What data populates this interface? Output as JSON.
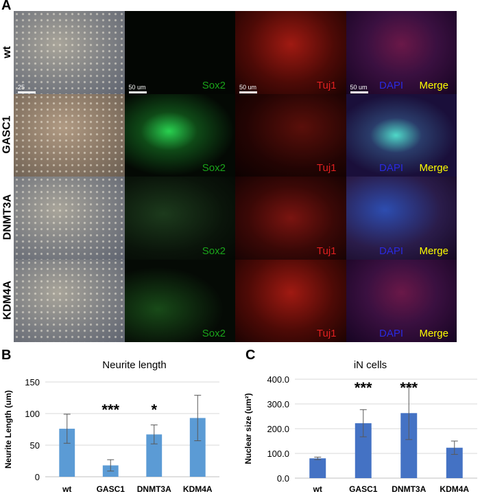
{
  "panel_letters": {
    "a": "A",
    "b": "B",
    "c": "C"
  },
  "micrographs": {
    "rows": [
      {
        "label": "wt",
        "sox2": "Sox2",
        "tuj1": "Tuj1",
        "dapi": "DAPI",
        "merge": "Merge"
      },
      {
        "label": "GASC1",
        "sox2": "Sox2",
        "tuj1": "Tuj1",
        "dapi": "DAPI",
        "merge": "Merge"
      },
      {
        "label": "DNMT3A",
        "sox2": "Sox2",
        "tuj1": "Tuj1",
        "dapi": "DAPI",
        "merge": "Merge"
      },
      {
        "label": "KDM4A",
        "sox2": "Sox2",
        "tuj1": "Tuj1",
        "dapi": "DAPI",
        "merge": "Merge"
      }
    ],
    "scale_bars": [
      "25",
      "50 um",
      "50 um",
      "50 um"
    ],
    "colors": {
      "sox2": "#1aa31a",
      "tuj1": "#e02020",
      "dapi": "#2a2ae0",
      "merge": "#ffff00"
    }
  },
  "chart_data": [
    {
      "type": "bar",
      "title": "Neurite length",
      "xlabel": "",
      "ylabel": "Neurite Length (um)",
      "categories": [
        "wt",
        "GASC1",
        "DNMT3A",
        "KDM4A"
      ],
      "values": [
        76,
        18,
        67,
        93
      ],
      "errors": [
        23,
        9,
        15,
        36
      ],
      "significance": [
        "",
        "***",
        "*",
        ""
      ],
      "ylim": [
        0,
        150
      ],
      "yticks": [
        "0",
        "50",
        "100",
        "150"
      ],
      "bar_color": "#5b9bd5",
      "grid": true
    },
    {
      "type": "bar",
      "title": "iN cells",
      "xlabel": "",
      "ylabel": "Nuclear size (um²)",
      "categories": [
        "wt",
        "GASC1",
        "DNMT3A",
        "KDM4A"
      ],
      "values": [
        80,
        222,
        263,
        123
      ],
      "errors": [
        5,
        55,
        107,
        27
      ],
      "significance": [
        "",
        "***",
        "***",
        ""
      ],
      "ylim": [
        0,
        400
      ],
      "yticks": [
        "0.0",
        "100.0",
        "200.0",
        "300.0",
        "400.0"
      ],
      "bar_color": "#4472c4",
      "grid": true
    }
  ]
}
